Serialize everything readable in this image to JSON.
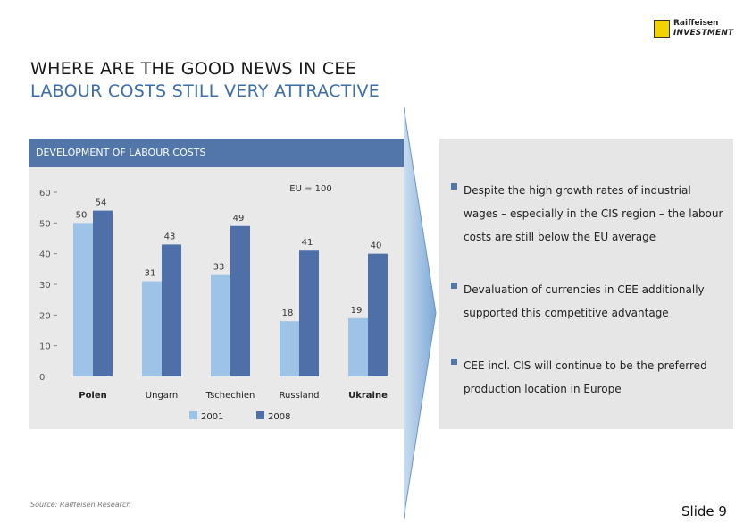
{
  "logo": {
    "line1": "Raiffeisen",
    "line2": "INVESTMENT"
  },
  "title": {
    "line1": "WHERE ARE THE GOOD NEWS IN CEE",
    "line2": "LABOUR COSTS STILL VERY ATTRACTIVE"
  },
  "chart_header": "DEVELOPMENT OF LABOUR COSTS",
  "chart_data": {
    "type": "bar",
    "title": "DEVELOPMENT OF LABOUR COSTS",
    "annotation": "EU = 100",
    "categories": [
      "Polen",
      "Ungarn",
      "Tschechien",
      "Russland",
      "Ukraine"
    ],
    "series": [
      {
        "name": "2001",
        "values": [
          50,
          31,
          33,
          18,
          19
        ],
        "color": "#9dc3e6"
      },
      {
        "name": "2008",
        "values": [
          54,
          43,
          49,
          41,
          40
        ],
        "color": "#4f6fa8"
      }
    ],
    "yticks": [
      "0",
      "10",
      "20",
      "30",
      "40",
      "50",
      "60"
    ],
    "ylim": [
      0,
      60
    ],
    "grid": false,
    "legend": "bottom"
  },
  "bullets": [
    "Despite the high growth rates of industrial wages – especially in the CIS region – the labour costs are still below the EU average",
    "Devaluation of currencies in CEE additionally supported this competitive advantage",
    "CEE incl. CIS will continue to be the preferred production location in Europe"
  ],
  "source": "Source: Raiffeisen Research",
  "slide": "Slide 9",
  "colors": {
    "accent": "#5276a7",
    "panel": "#e9e9e9"
  }
}
